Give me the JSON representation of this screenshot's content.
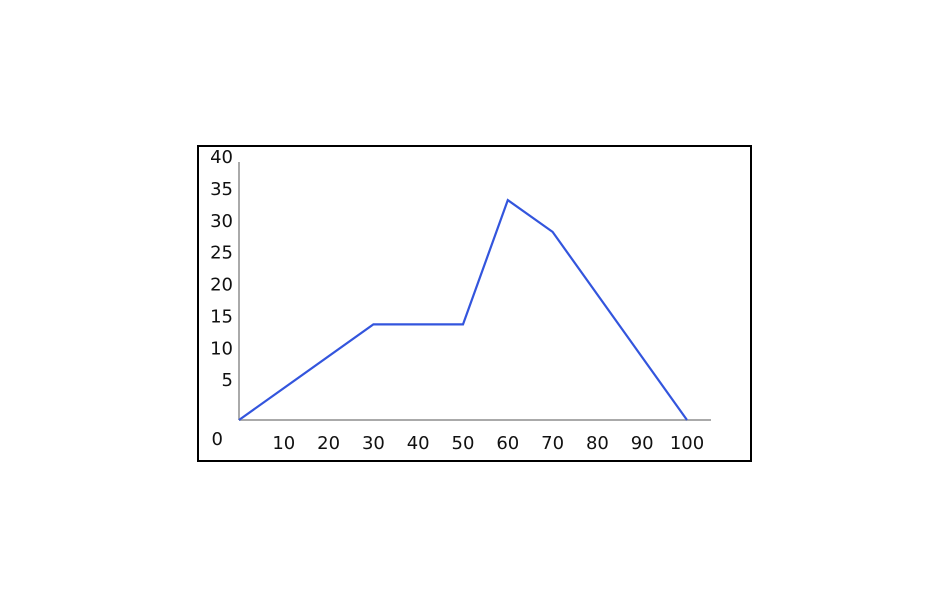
{
  "chart_data": {
    "type": "line",
    "x": [
      0,
      30,
      50,
      60,
      70,
      100
    ],
    "series": [
      {
        "values": [
          0,
          15,
          15,
          34.5,
          29.5,
          0
        ],
        "color": "#3355dd"
      }
    ],
    "xticks": [
      "10",
      "20",
      "30",
      "40",
      "50",
      "60",
      "70",
      "80",
      "90",
      "100"
    ],
    "yticks": [
      "5",
      "10",
      "15",
      "20",
      "25",
      "30",
      "35",
      "40"
    ],
    "origin_label": "0",
    "xlim": [
      0,
      105
    ],
    "ylim": [
      0,
      40
    ],
    "grid": false,
    "axis_color": "#aaaaaa",
    "title": "",
    "xlabel": "",
    "ylabel": ""
  }
}
